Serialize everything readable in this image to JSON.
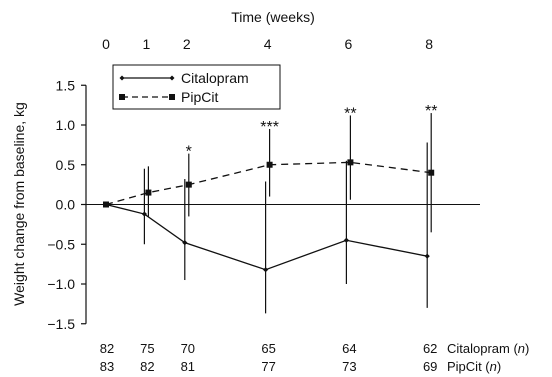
{
  "chart_data": {
    "type": "line",
    "title": "",
    "xlabel_top": "Time (weeks)",
    "ylabel": "Weight change from baseline, kg",
    "x_ticks": [
      0,
      1,
      2,
      4,
      6,
      8
    ],
    "ylim": [
      -1.5,
      1.5
    ],
    "y_ticks": [
      -1.5,
      -1.0,
      -0.5,
      0.0,
      0.5,
      1.0,
      1.5
    ],
    "y_tick_labels": [
      "−1.5",
      "−1.0",
      "−0.5",
      "0.0",
      "0.5",
      "1.0",
      "1.5"
    ],
    "grid": false,
    "legend_position": "top-left",
    "series": [
      {
        "name": "Citalopram",
        "line_style": "solid",
        "marker": "diamond",
        "x": [
          0,
          1,
          2,
          4,
          6,
          8
        ],
        "values": [
          0.0,
          -0.12,
          -0.48,
          -0.82,
          -0.45,
          -0.65
        ],
        "err_upper": [
          0.0,
          0.45,
          0.32,
          0.29,
          0.55,
          0.78
        ],
        "err_lower": [
          0.0,
          -0.5,
          -0.95,
          -1.37,
          -1.0,
          -1.3
        ]
      },
      {
        "name": "PipCit",
        "line_style": "dashed",
        "marker": "square",
        "x": [
          0,
          1,
          2,
          4,
          6,
          8
        ],
        "values": [
          0.0,
          0.15,
          0.25,
          0.5,
          0.53,
          0.4
        ],
        "err_upper": [
          0.0,
          0.48,
          0.64,
          0.95,
          1.12,
          1.15
        ],
        "err_lower": [
          0.0,
          -0.15,
          -0.15,
          0.1,
          0.06,
          -0.35
        ]
      }
    ],
    "significance": [
      {
        "x": 2,
        "label": "*"
      },
      {
        "x": 4,
        "label": "***"
      },
      {
        "x": 6,
        "label": "**"
      },
      {
        "x": 8,
        "label": "**"
      }
    ],
    "n_table": {
      "rows": [
        {
          "label": "Citalopram",
          "values": [
            "82",
            "75",
            "70",
            "65",
            "64",
            "62"
          ]
        },
        {
          "label": "PipCit",
          "values": [
            "83",
            "82",
            "81",
            "77",
            "73",
            "69"
          ]
        }
      ],
      "n_symbol": "n"
    }
  }
}
